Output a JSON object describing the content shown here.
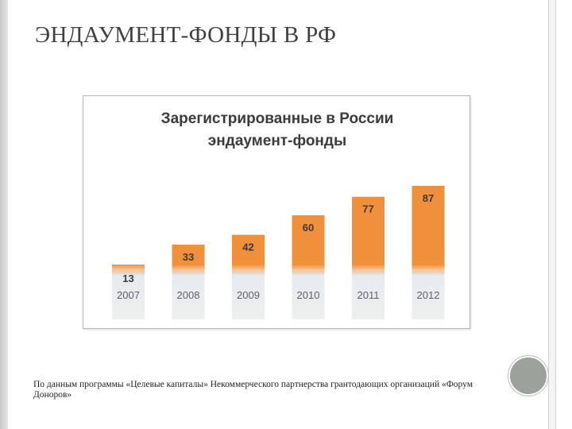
{
  "slide": {
    "title": "ЭНДАУМЕНТ-ФОНДЫ В РФ",
    "footnote": "По данным программы «Целевые капиталы» Некоммерческого партнерства грантодающих организаций «Форум Доноров»"
  },
  "colors": {
    "bar_top": "#f0903a",
    "bar_bottom": "#e9ecf1",
    "value_text": "#3a3a3a",
    "year_text": "#5a6070"
  },
  "chart_data": {
    "type": "bar",
    "title": "Зарегистрированные в России эндаумент-фонды",
    "title_lines": [
      "Зарегистрированные в России",
      "эндаумент-фонды"
    ],
    "categories": [
      "2007",
      "2008",
      "2009",
      "2010",
      "2011",
      "2012"
    ],
    "values": [
      13,
      33,
      42,
      60,
      77,
      87
    ],
    "xlabel": "",
    "ylabel": "",
    "ylim": [
      0,
      87
    ],
    "grid": false,
    "legend": "none"
  }
}
